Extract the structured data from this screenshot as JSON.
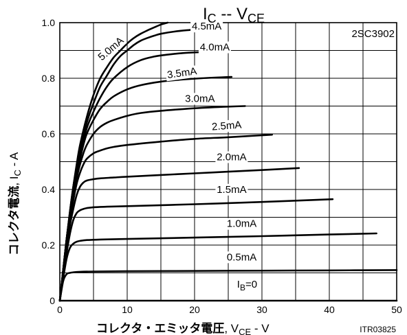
{
  "chart_data": {
    "type": "line",
    "title": {
      "main": "I",
      "main_sub": "C",
      "sep": " -- V",
      "sep_sub": "CE"
    },
    "part_label": "2SC3902",
    "code_label": "ITR03825",
    "xlabel": {
      "jp": "コレクタ・エミッタ電圧",
      "var": ", V",
      "sub": "CE",
      "unit": " - V"
    },
    "ylabel": {
      "jp": "コレクタ電流",
      "var": ", I",
      "sub": "C",
      "unit": " - A"
    },
    "xlim": [
      0,
      50
    ],
    "ylim": [
      0,
      1.0
    ],
    "x_ticks": [
      0,
      10,
      20,
      30,
      40,
      50
    ],
    "y_ticks": [
      0,
      0.2,
      0.4,
      0.6,
      0.8,
      1.0
    ],
    "y_tick_labels": [
      "0",
      "0.2",
      "0.4",
      "0.6",
      "0.8",
      "1.0"
    ],
    "minor_x_step": 5,
    "minor_y_step": 0.1,
    "grid": true,
    "series": [
      {
        "name": "IB=0",
        "x": [
          0,
          50
        ],
        "y": [
          0,
          0
        ]
      },
      {
        "name": "0.5mA",
        "x": [
          0,
          0.5,
          1.0,
          1.5,
          2.0,
          3.0,
          5.0,
          10,
          20,
          30,
          40,
          50
        ],
        "y": [
          0,
          0.07,
          0.095,
          0.1,
          0.102,
          0.104,
          0.105,
          0.106,
          0.107,
          0.108,
          0.109,
          0.11
        ]
      },
      {
        "name": "1.0mA",
        "x": [
          0,
          0.5,
          1.0,
          1.5,
          2.0,
          2.5,
          3.0,
          4.0,
          6.0,
          10,
          20,
          30,
          40,
          47
        ],
        "y": [
          0,
          0.08,
          0.15,
          0.19,
          0.205,
          0.212,
          0.215,
          0.218,
          0.22,
          0.222,
          0.227,
          0.232,
          0.238,
          0.242
        ]
      },
      {
        "name": "1.5mA",
        "x": [
          0,
          0.5,
          1.0,
          1.5,
          2.0,
          2.5,
          3.0,
          3.5,
          4.0,
          5.0,
          7.0,
          10,
          20,
          30,
          40.5
        ],
        "y": [
          0,
          0.09,
          0.17,
          0.24,
          0.29,
          0.315,
          0.325,
          0.33,
          0.333,
          0.336,
          0.338,
          0.34,
          0.347,
          0.355,
          0.365
        ]
      },
      {
        "name": "2.0mA",
        "x": [
          0,
          0.5,
          1.0,
          1.5,
          2.0,
          2.5,
          3.0,
          3.5,
          4.0,
          5.0,
          6.0,
          8.0,
          10,
          15,
          20,
          25,
          30,
          35.5
        ],
        "y": [
          0,
          0.1,
          0.19,
          0.27,
          0.33,
          0.38,
          0.41,
          0.425,
          0.432,
          0.437,
          0.44,
          0.443,
          0.446,
          0.452,
          0.458,
          0.464,
          0.47,
          0.477
        ]
      },
      {
        "name": "2.5mA",
        "x": [
          0,
          0.5,
          1.0,
          1.5,
          2.0,
          2.5,
          3.0,
          3.5,
          4.0,
          5.0,
          6.0,
          7.0,
          8.0,
          10,
          15,
          20,
          25,
          31.5
        ],
        "y": [
          0,
          0.1,
          0.2,
          0.29,
          0.36,
          0.42,
          0.46,
          0.49,
          0.51,
          0.53,
          0.54,
          0.548,
          0.553,
          0.56,
          0.572,
          0.582,
          0.588,
          0.597
        ]
      },
      {
        "name": "3.0mA",
        "x": [
          0,
          0.5,
          1.0,
          1.5,
          2.0,
          2.5,
          3.0,
          3.5,
          4.0,
          5.0,
          6.0,
          7.0,
          8.0,
          10,
          12,
          15,
          20,
          25,
          27.5
        ],
        "y": [
          0,
          0.11,
          0.21,
          0.3,
          0.38,
          0.44,
          0.49,
          0.53,
          0.56,
          0.6,
          0.625,
          0.64,
          0.65,
          0.665,
          0.675,
          0.683,
          0.692,
          0.698,
          0.7
        ]
      },
      {
        "name": "3.5mA",
        "x": [
          0,
          0.5,
          1.0,
          1.5,
          2.0,
          2.5,
          3.0,
          3.5,
          4.0,
          5.0,
          6.0,
          7.0,
          8.0,
          10,
          12,
          15,
          18,
          21,
          25.5
        ],
        "y": [
          0,
          0.11,
          0.22,
          0.31,
          0.39,
          0.46,
          0.51,
          0.56,
          0.6,
          0.65,
          0.69,
          0.715,
          0.735,
          0.76,
          0.775,
          0.788,
          0.795,
          0.8,
          0.805
        ]
      },
      {
        "name": "4.0mA",
        "x": [
          0,
          0.5,
          1.0,
          1.5,
          2.0,
          2.5,
          3.0,
          4.0,
          5.0,
          6.0,
          7.0,
          8.0,
          10,
          12,
          14,
          16,
          18,
          20,
          22,
          25
        ],
        "y": [
          0,
          0.11,
          0.22,
          0.31,
          0.4,
          0.47,
          0.53,
          0.62,
          0.68,
          0.73,
          0.77,
          0.8,
          0.84,
          0.865,
          0.878,
          0.885,
          0.89,
          0.893,
          0.895,
          0.897
        ]
      },
      {
        "name": "4.5mA",
        "x": [
          0,
          0.5,
          1.0,
          1.5,
          2.0,
          2.5,
          3.0,
          4.0,
          5.0,
          6.0,
          7.0,
          8.0,
          9.0,
          10,
          11,
          12,
          13,
          14,
          15,
          17,
          19,
          21
        ],
        "y": [
          0,
          0.11,
          0.22,
          0.32,
          0.41,
          0.48,
          0.54,
          0.64,
          0.71,
          0.77,
          0.81,
          0.85,
          0.88,
          0.9,
          0.92,
          0.935,
          0.945,
          0.953,
          0.96,
          0.968,
          0.973,
          0.976
        ]
      },
      {
        "name": "5.0mA",
        "x": [
          0,
          0.5,
          1.0,
          1.5,
          2.0,
          2.5,
          3.0,
          4.0,
          5.0,
          6.0,
          7.0,
          8.0,
          9.0,
          10,
          11,
          12,
          13,
          14,
          15,
          16
        ],
        "y": [
          0,
          0.11,
          0.22,
          0.32,
          0.41,
          0.49,
          0.56,
          0.66,
          0.74,
          0.8,
          0.84,
          0.875,
          0.9,
          0.925,
          0.945,
          0.96,
          0.972,
          0.983,
          0.993,
          1.0
        ]
      }
    ],
    "curve_labels": [
      {
        "text": "IB=0",
        "main": "I",
        "sub": "B",
        "rest": "=0",
        "x": 27.8,
        "y": 0.047,
        "rotate": 0
      },
      {
        "text": "0.5mA",
        "x": 27.0,
        "y": 0.145,
        "rotate": 0
      },
      {
        "text": "1.0mA",
        "x": 27.0,
        "y": 0.265,
        "rotate": 0
      },
      {
        "text": "1.5mA",
        "x": 25.5,
        "y": 0.388,
        "rotate": 0
      },
      {
        "text": "2.0mA",
        "x": 25.5,
        "y": 0.505,
        "rotate": 0
      },
      {
        "text": "2.5mA",
        "x": 24.8,
        "y": 0.617,
        "rotate": -4
      },
      {
        "text": "3.0mA",
        "x": 20.8,
        "y": 0.715,
        "rotate": 0
      },
      {
        "text": "3.5mA",
        "x": 18.2,
        "y": 0.807,
        "rotate": -8
      },
      {
        "text": "4.0mA",
        "x": 23.0,
        "y": 0.9,
        "rotate": 0
      },
      {
        "text": "4.5mA",
        "x": 21.8,
        "y": 0.975,
        "rotate": 0
      },
      {
        "text": "5.0mA",
        "x": 7.9,
        "y": 0.897,
        "rotate": -41
      }
    ],
    "colors": {
      "curve": "#000000",
      "grid": "#000000",
      "background": "#ffffff"
    }
  }
}
